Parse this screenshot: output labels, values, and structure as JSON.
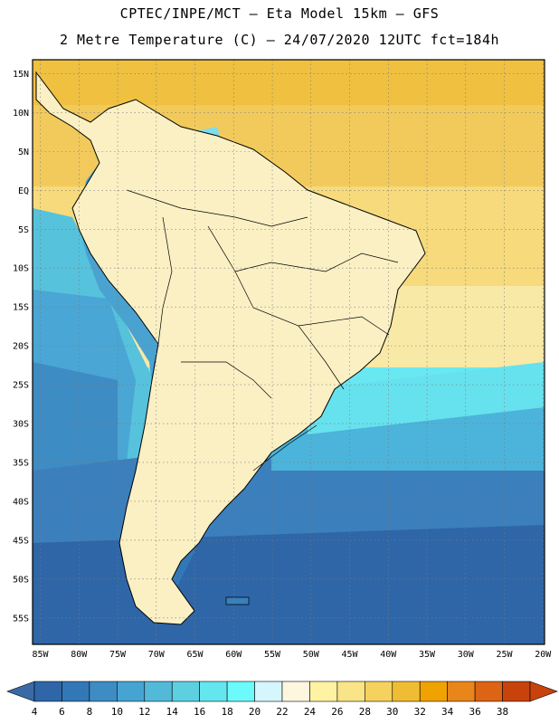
{
  "header": {
    "line1": "CPTEC/INPE/MCT –  Eta Model 15km – GFS",
    "line2": "2 Metre Temperature (C) – 24/07/2020 12UTC fct=184h"
  },
  "map": {
    "lat_labels": [
      "15N",
      "10N",
      "5N",
      "EQ",
      "5S",
      "10S",
      "15S",
      "20S",
      "25S",
      "30S",
      "35S",
      "40S",
      "45S",
      "50S",
      "55S"
    ],
    "lon_labels": [
      "85W",
      "80W",
      "75W",
      "70W",
      "65W",
      "60W",
      "55W",
      "50W",
      "45W",
      "40W",
      "35W",
      "30W",
      "25W",
      "20W"
    ],
    "lat_values": [
      15,
      10,
      5,
      0,
      -5,
      -10,
      -15,
      -20,
      -25,
      -30,
      -35,
      -40,
      -45,
      -50,
      -55
    ],
    "lon_values": [
      -85,
      -80,
      -75,
      -70,
      -65,
      -60,
      -55,
      -50,
      -45,
      -40,
      -35,
      -30,
      -25,
      -20
    ],
    "extent": {
      "lon_min": -86,
      "lon max": -19.8,
      "lat_min": -58.4,
      "lat_max": 16.8
    }
  },
  "colorbar": {
    "labels": [
      "4",
      "6",
      "8",
      "10",
      "12",
      "14",
      "16",
      "18",
      "20",
      "22",
      "24",
      "26",
      "28",
      "30",
      "32",
      "34",
      "36",
      "38"
    ],
    "colors": [
      "#2e66a8",
      "#3378b6",
      "#3e8cc4",
      "#46a4d2",
      "#52bad8",
      "#5cd0e0",
      "#64e6ee",
      "#6cfafc",
      "#d4f6fc",
      "#fdf7e0",
      "#fdf3a2",
      "#f9e487",
      "#f5d25e",
      "#f0bc33",
      "#f0a200",
      "#e8861c",
      "#dc6414",
      "#c8420c"
    ],
    "left_arrow_color": "#3a6aa6",
    "right_arrow_color": "#c8420c"
  }
}
